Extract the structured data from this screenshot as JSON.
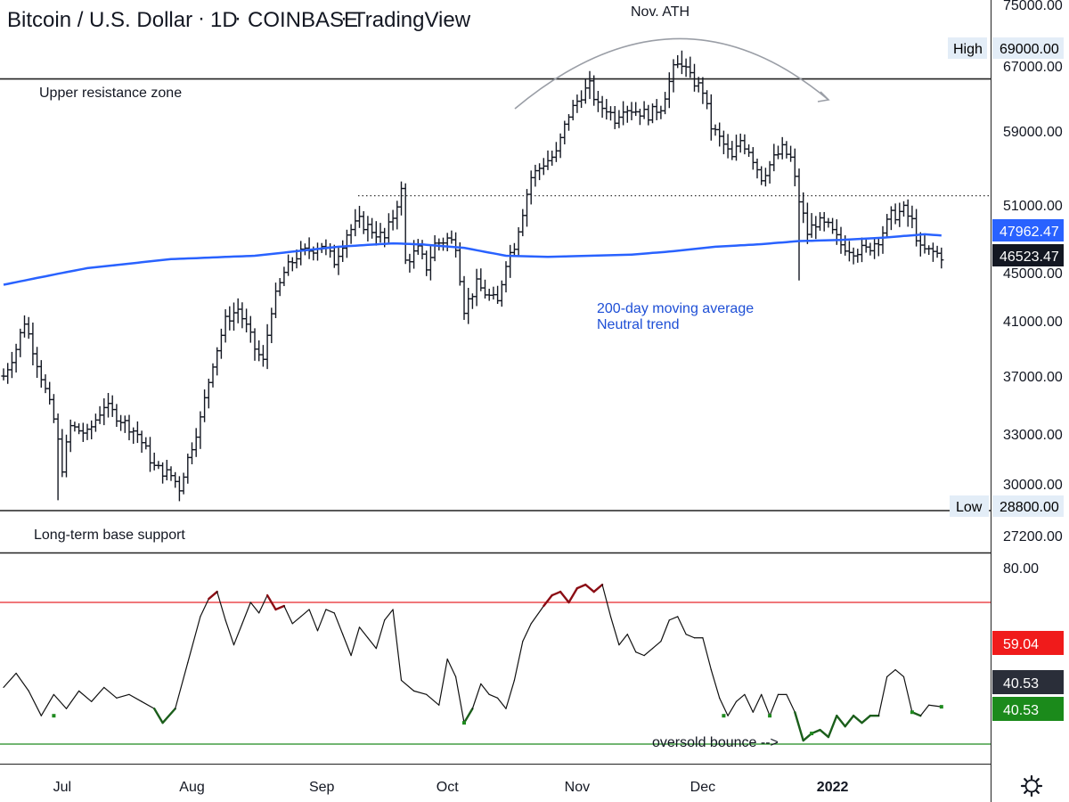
{
  "header": {
    "title_parts": [
      "Bitcoin / U.S. Dollar",
      "1D",
      "COINBASE",
      "TradingView"
    ]
  },
  "annotations": {
    "ath": "Nov. ATH",
    "upper_zone": "Upper resistance zone",
    "base_support": "Long-term base support",
    "ma_line1": "200-day moving average",
    "ma_line2": "Neutral trend",
    "oversold": "oversold bounce -->"
  },
  "tags": {
    "high_label": "High",
    "high_value": "69000.00",
    "low_label": "Low",
    "low_value": "28800.00",
    "ma_value": "47962.47",
    "close_value": "46523.47",
    "ind_red": "59.04",
    "ind_dark": "40.53",
    "ind_green": "40.53"
  },
  "colors": {
    "ma": "#2962ff",
    "resistance": "#222222",
    "overbought": "#e8262a",
    "oversold": "#1f8a1f",
    "indicator_line": "#111111",
    "indicator_hot": "#8b0d14",
    "indicator_cold": "#1b5e1b"
  },
  "chart_data": [
    {
      "type": "ohlc",
      "title": "Bitcoin / U.S. Dollar · 1D · COINBASE",
      "price_axis_ticks": [
        "75000.00",
        "67000.00",
        "59000.00",
        "51000.00",
        "45000.00",
        "41000.00",
        "37000.00",
        "33000.00",
        "30000.00",
        "27200.00"
      ],
      "x_ticks": [
        "Jul",
        "Aug",
        "Sep",
        "Oct",
        "Nov",
        "Dec",
        "2022"
      ],
      "x_tick_days": [
        14,
        45,
        76,
        106,
        137,
        167,
        198
      ],
      "levels": {
        "upper_resistance": 65400,
        "long_term_support": 28800,
        "dotted_level": 52000
      },
      "anchors": [
        [
          0,
          37000
        ],
        [
          3,
          39000
        ],
        [
          5,
          41000
        ],
        [
          9,
          37000
        ],
        [
          12,
          34000
        ],
        [
          14,
          31000
        ],
        [
          16,
          33500
        ],
        [
          20,
          33000
        ],
        [
          24,
          35000
        ],
        [
          28,
          34000
        ],
        [
          32,
          33000
        ],
        [
          36,
          31000
        ],
        [
          40,
          30500
        ],
        [
          42,
          29800
        ],
        [
          44,
          31500
        ],
        [
          47,
          34000
        ],
        [
          50,
          38000
        ],
        [
          53,
          41000
        ],
        [
          56,
          42000
        ],
        [
          60,
          39000
        ],
        [
          62,
          38000
        ],
        [
          64,
          42000
        ],
        [
          67,
          45000
        ],
        [
          70,
          46500
        ],
        [
          73,
          47000
        ],
        [
          76,
          47500
        ],
        [
          79,
          46000
        ],
        [
          82,
          48500
        ],
        [
          85,
          49500
        ],
        [
          88,
          48800
        ],
        [
          91,
          48000
        ],
        [
          93,
          50000
        ],
        [
          95,
          52500
        ],
        [
          96,
          46000
        ],
        [
          99,
          47000
        ],
        [
          101,
          45500
        ],
        [
          103,
          47500
        ],
        [
          106,
          48000
        ],
        [
          108,
          47500
        ],
        [
          110,
          42000
        ],
        [
          113,
          44000
        ],
        [
          116,
          43000
        ],
        [
          118,
          42500
        ],
        [
          120,
          46000
        ],
        [
          122,
          47500
        ],
        [
          124,
          50500
        ],
        [
          126,
          54000
        ],
        [
          129,
          55500
        ],
        [
          132,
          56500
        ],
        [
          135,
          61000
        ],
        [
          138,
          63500
        ],
        [
          140,
          64500
        ],
        [
          142,
          62000
        ],
        [
          144,
          61800
        ],
        [
          146,
          60500
        ],
        [
          148,
          62000
        ],
        [
          151,
          61500
        ],
        [
          154,
          61000
        ],
        [
          157,
          62000
        ],
        [
          160,
          66500
        ],
        [
          162,
          67500
        ],
        [
          164,
          65500
        ],
        [
          167,
          64000
        ],
        [
          169,
          59500
        ],
        [
          172,
          57500
        ],
        [
          174,
          56000
        ],
        [
          176,
          58000
        ],
        [
          178,
          57000
        ],
        [
          181,
          54000
        ],
        [
          184,
          56000
        ],
        [
          186,
          57000
        ],
        [
          188,
          56000
        ],
        [
          190,
          51500
        ],
        [
          192,
          48500
        ],
        [
          194,
          49500
        ],
        [
          197,
          49000
        ],
        [
          200,
          47500
        ],
        [
          203,
          47000
        ],
        [
          206,
          47000
        ],
        [
          209,
          48000
        ],
        [
          212,
          50000
        ],
        [
          215,
          50500
        ],
        [
          217,
          49500
        ],
        [
          219,
          47000
        ],
        [
          222,
          46800
        ],
        [
          224,
          46500
        ]
      ],
      "moving_average_200": [
        [
          0,
          44000
        ],
        [
          20,
          45400
        ],
        [
          40,
          46200
        ],
        [
          60,
          46500
        ],
        [
          80,
          47300
        ],
        [
          93,
          47600
        ],
        [
          100,
          47500
        ],
        [
          110,
          47200
        ],
        [
          120,
          46500
        ],
        [
          130,
          46400
        ],
        [
          140,
          46500
        ],
        [
          150,
          46600
        ],
        [
          160,
          46900
        ],
        [
          170,
          47300
        ],
        [
          180,
          47500
        ],
        [
          190,
          47800
        ],
        [
          200,
          47900
        ],
        [
          210,
          48100
        ],
        [
          220,
          48400
        ],
        [
          224,
          48300
        ]
      ]
    },
    {
      "type": "line",
      "y_ticks": [
        "80.00"
      ],
      "levels": {
        "overbought": 70,
        "oversold": 30
      },
      "values": [
        [
          0,
          46
        ],
        [
          3,
          50
        ],
        [
          6,
          45
        ],
        [
          9,
          38
        ],
        [
          12,
          44
        ],
        [
          15,
          40
        ],
        [
          18,
          45
        ],
        [
          21,
          42
        ],
        [
          24,
          46
        ],
        [
          27,
          43
        ],
        [
          30,
          44
        ],
        [
          33,
          42
        ],
        [
          36,
          40
        ],
        [
          38,
          36
        ],
        [
          41,
          40
        ],
        [
          44,
          53
        ],
        [
          47,
          66
        ],
        [
          49,
          71
        ],
        [
          51,
          73
        ],
        [
          53,
          65
        ],
        [
          55,
          58
        ],
        [
          57,
          64
        ],
        [
          59,
          70
        ],
        [
          61,
          67
        ],
        [
          63,
          72
        ],
        [
          65,
          68
        ],
        [
          67,
          69
        ],
        [
          69,
          64
        ],
        [
          71,
          66
        ],
        [
          73,
          68
        ],
        [
          75,
          62
        ],
        [
          77,
          68
        ],
        [
          79,
          67
        ],
        [
          81,
          61
        ],
        [
          83,
          55
        ],
        [
          85,
          63
        ],
        [
          87,
          60
        ],
        [
          89,
          57
        ],
        [
          91,
          65
        ],
        [
          93,
          68
        ],
        [
          95,
          48
        ],
        [
          98,
          45
        ],
        [
          101,
          44
        ],
        [
          104,
          41
        ],
        [
          106,
          54
        ],
        [
          108,
          49
        ],
        [
          110,
          36
        ],
        [
          112,
          40
        ],
        [
          114,
          47
        ],
        [
          116,
          44
        ],
        [
          118,
          43
        ],
        [
          120,
          40
        ],
        [
          122,
          48
        ],
        [
          124,
          59
        ],
        [
          126,
          64
        ],
        [
          129,
          69
        ],
        [
          131,
          72
        ],
        [
          133,
          73
        ],
        [
          135,
          70
        ],
        [
          137,
          74
        ],
        [
          139,
          75
        ],
        [
          141,
          73
        ],
        [
          143,
          75
        ],
        [
          145,
          66
        ],
        [
          147,
          58
        ],
        [
          149,
          61
        ],
        [
          151,
          56
        ],
        [
          153,
          55
        ],
        [
          155,
          57
        ],
        [
          157,
          59
        ],
        [
          159,
          65
        ],
        [
          161,
          66
        ],
        [
          163,
          61
        ],
        [
          165,
          60
        ],
        [
          167,
          60
        ],
        [
          169,
          51
        ],
        [
          171,
          43
        ],
        [
          173,
          38
        ],
        [
          175,
          42
        ],
        [
          177,
          44
        ],
        [
          179,
          39
        ],
        [
          181,
          44
        ],
        [
          183,
          38
        ],
        [
          185,
          44
        ],
        [
          187,
          44
        ],
        [
          189,
          39
        ],
        [
          191,
          31
        ],
        [
          193,
          33
        ],
        [
          195,
          34
        ],
        [
          197,
          32
        ],
        [
          199,
          38
        ],
        [
          201,
          35
        ],
        [
          203,
          38
        ],
        [
          205,
          36
        ],
        [
          207,
          38
        ],
        [
          209,
          38
        ],
        [
          211,
          49
        ],
        [
          213,
          51
        ],
        [
          215,
          49
        ],
        [
          217,
          39
        ],
        [
          219,
          38
        ],
        [
          221,
          41
        ],
        [
          224,
          40.53
        ]
      ]
    }
  ]
}
